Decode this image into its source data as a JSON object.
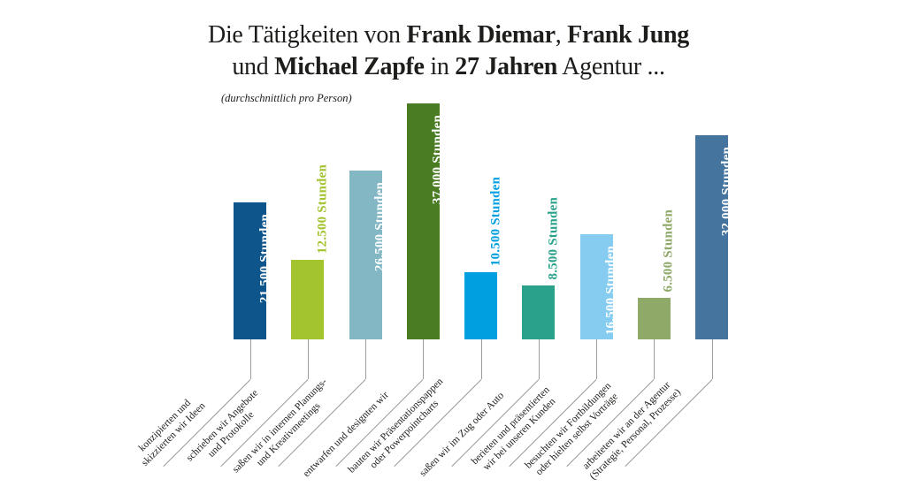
{
  "title": {
    "line1": [
      {
        "text": "Die Tätigkeiten von ",
        "bold": false
      },
      {
        "text": "Frank Diemar",
        "bold": true
      },
      {
        "text": ", ",
        "bold": false
      },
      {
        "text": "Frank Jung",
        "bold": true
      }
    ],
    "line2": [
      {
        "text": "und ",
        "bold": false
      },
      {
        "text": "Michael Zapfe",
        "bold": true
      },
      {
        "text": " in ",
        "bold": false
      },
      {
        "text": "27 Jahren",
        "bold": true
      },
      {
        "text": " Agentur ...",
        "bold": false
      }
    ],
    "subtitle": "(durchschnittlich pro Person)"
  },
  "chart_data": {
    "type": "bar",
    "title": "Die Tätigkeiten von Frank Diemar, Frank Jung und Michael Zapfe in 27 Jahren Agentur ...",
    "subtitle": "(durchschnittlich pro Person)",
    "unit": "Stunden",
    "ylim": [
      0,
      37000
    ],
    "grid": false,
    "legend": "none",
    "categories": [
      "konzipierten und skizzierten wir Ideen",
      "schrieben wir Angebote und Protokolle",
      "saßen wir in internen Planungs- und Kreativmeetings",
      "entwarfen und designten wir",
      "bauten wir Präsentationspappen oder Powerpointcharts",
      "saßen wir im Zug oder Auto",
      "berieten und präsentierten wir bei unseren Kunden",
      "besuchten wir Fortbildungen oder hielten selbst Vorträge",
      "arbeiteten wir an der Agentur (Strategie, Personal, Prozesse)"
    ],
    "values": [
      21500,
      12500,
      26500,
      37000,
      10500,
      8500,
      16500,
      6500,
      32000
    ],
    "bars": [
      {
        "value": 21500,
        "value_label": "21.500 Stunden",
        "color": "#0e558c",
        "label_inside": true,
        "category_lines": [
          "konzipierten und",
          "skizzierten wir Ideen"
        ]
      },
      {
        "value": 12500,
        "value_label": "12.500 Stunden",
        "color": "#a3c32f",
        "label_inside": false,
        "category_lines": [
          "schrieben wir Angebote",
          "und Protokolle"
        ]
      },
      {
        "value": 26500,
        "value_label": "26.500 Stunden",
        "color": "#82b7c3",
        "label_inside": true,
        "category_lines": [
          "saßen wir in internen Planungs-",
          "und Kreativmeetings"
        ]
      },
      {
        "value": 37000,
        "value_label": "37.000 Stunden",
        "color": "#497c23",
        "label_inside": true,
        "category_lines": [
          "entwarfen und designten wir"
        ]
      },
      {
        "value": 10500,
        "value_label": "10.500 Stunden",
        "color": "#009fe0",
        "label_inside": false,
        "category_lines": [
          "bauten wir Präsentationspappen",
          "oder Powerpointcharts"
        ]
      },
      {
        "value": 8500,
        "value_label": "8.500 Stunden",
        "color": "#2aa28b",
        "label_inside": false,
        "category_lines": [
          "saßen wir im Zug oder Auto"
        ]
      },
      {
        "value": 16500,
        "value_label": "16.500 Stunden",
        "color": "#85ccf0",
        "label_inside": true,
        "category_lines": [
          "berieten und präsentierten",
          "wir bei unseren Kunden"
        ]
      },
      {
        "value": 6500,
        "value_label": "6.500 Stunden",
        "color": "#8fa968",
        "label_inside": false,
        "category_lines": [
          "besuchten wir Fortbildungen",
          "oder hielten selbst Vorträge"
        ]
      },
      {
        "value": 32000,
        "value_label": "32.000 Stunden",
        "color": "#45759e",
        "label_inside": true,
        "category_lines": [
          "arbeiteten wir an der Agentur",
          "(Strategie, Personal, Prozesse)"
        ]
      }
    ]
  },
  "colors": {
    "background": "#ffffff",
    "connector": "#9b9b9b",
    "text": "#1d1d1b"
  }
}
